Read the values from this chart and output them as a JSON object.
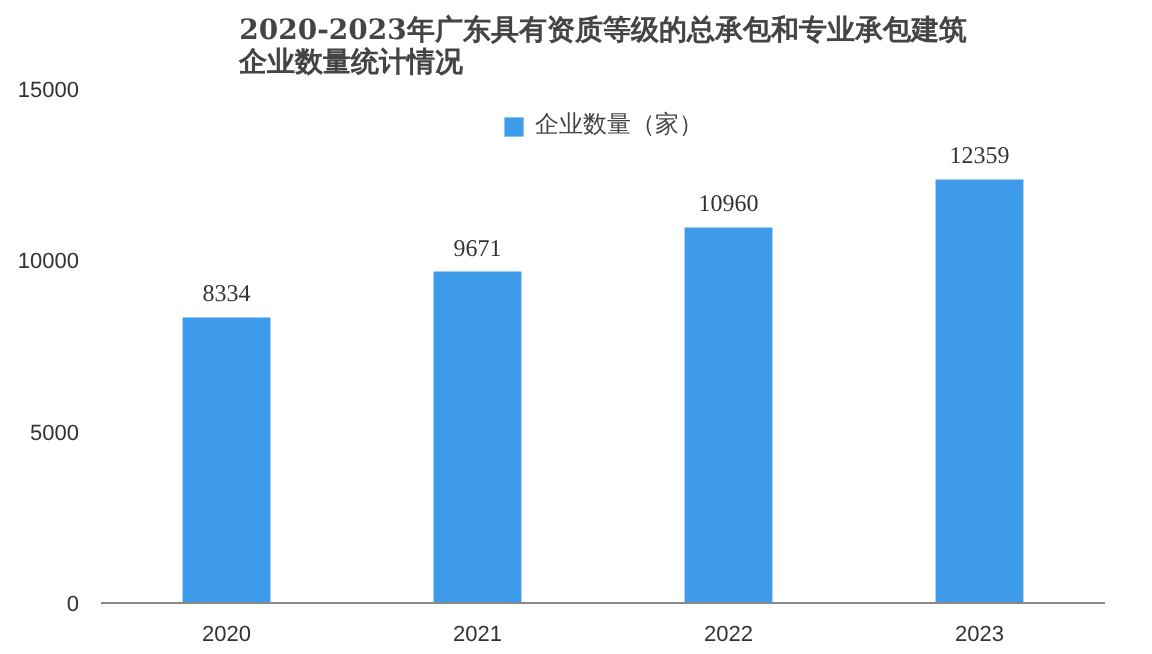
{
  "chart_data": {
    "type": "bar",
    "title": "2020-2023年广东具有资质等级的总承包和专业承包建筑企业数量统计情况",
    "categories": [
      "2020",
      "2021",
      "2022",
      "2023"
    ],
    "series": [
      {
        "name": "企业数量（家）",
        "color": "#3d9be9",
        "values": [
          8334,
          9671,
          10960,
          12359
        ]
      }
    ],
    "ylim": [
      0,
      15000
    ],
    "yticks": [
      0,
      5000,
      10000,
      15000
    ],
    "grid": false,
    "legend": "top",
    "data_labels": true
  }
}
